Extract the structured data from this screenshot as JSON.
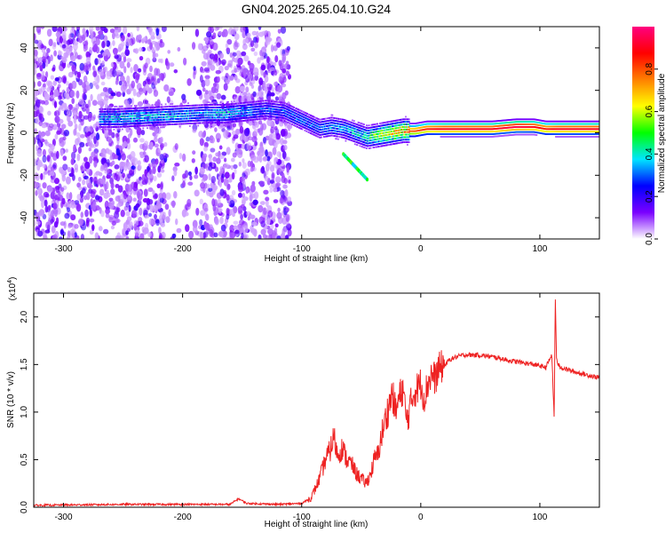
{
  "title": "GN04.2025.265.04.10.G24",
  "chart_data": [
    {
      "type": "heatmap",
      "title": "GN04.2025.265.04.10.G24",
      "xlabel": "Height of straight line (km)",
      "ylabel": "Frequency (Hz)",
      "xlim": [
        -325,
        150
      ],
      "ylim": [
        -50,
        50
      ],
      "xticks": [
        -300,
        -200,
        -100,
        0,
        100
      ],
      "xtick_labels": [
        "-300",
        "-200",
        "-100",
        "0",
        "100"
      ],
      "yticks": [
        -40,
        -20,
        0,
        20,
        40
      ],
      "ytick_labels": [
        "-40",
        "-20",
        "0",
        "20",
        "40"
      ],
      "colorbar": {
        "label": "Normalized spectral amplitude",
        "range": [
          0,
          1
        ],
        "ticks": [
          0,
          0.2,
          0.4,
          0.6,
          0.8
        ],
        "tick_labels": [
          "0.0",
          "0.2",
          "0.4",
          "0.6",
          "0.8"
        ],
        "colormap": [
          "#ffffff",
          "#7a00ff",
          "#0000ff",
          "#00e5ff",
          "#00ff00",
          "#ffff00",
          "#ff8000",
          "#ff0000",
          "#ff0080"
        ]
      },
      "ridge": {
        "description_free_values": true,
        "x": [
          -270,
          -255,
          -180,
          -165,
          -130,
          -115,
          -100,
          -85,
          -75,
          -65,
          -55,
          -45,
          -35,
          -25,
          -15,
          -5,
          5,
          20,
          40,
          60,
          80,
          95,
          105,
          115,
          130,
          150
        ],
        "frequency": [
          7,
          7,
          9,
          9,
          11,
          10,
          6,
          2,
          3,
          2,
          0,
          -2,
          -1,
          0,
          1,
          1,
          2,
          2,
          2,
          2,
          3,
          3,
          2,
          2,
          2,
          2
        ],
        "amplitude": [
          0.35,
          0.4,
          0.35,
          0.4,
          0.3,
          0.3,
          0.3,
          0.3,
          0.35,
          0.35,
          0.4,
          0.45,
          0.6,
          0.7,
          0.75,
          0.8,
          0.85,
          0.9,
          0.9,
          0.9,
          0.95,
          0.9,
          0.85,
          0.9,
          0.9,
          0.9
        ]
      }
    },
    {
      "type": "line",
      "xlabel": "Height of straight line (km)",
      "ylabel": "SNR (10 * v/v)",
      "multiplier_label": "(x10",
      "multiplier_exp": "4",
      "multiplier_close": ")",
      "xlim": [
        -325,
        150
      ],
      "ylim": [
        0,
        2.25
      ],
      "xticks": [
        -300,
        -200,
        -100,
        0,
        100
      ],
      "xtick_labels": [
        "-300",
        "-200",
        "-100",
        "0",
        "100"
      ],
      "yticks": [
        0,
        0.5,
        1.0,
        1.5,
        2.0
      ],
      "ytick_labels": [
        "0.0",
        "0.5",
        "1.0",
        "1.5",
        "2.0"
      ],
      "color": "#ee2222",
      "series": [
        {
          "name": "SNR",
          "x": [
            -325,
            -250,
            -160,
            -153,
            -146,
            -120,
            -100,
            -92,
            -85,
            -80,
            -76,
            -73,
            -70,
            -66,
            -62,
            -58,
            -54,
            -50,
            -46,
            -42,
            -39,
            -36,
            -33,
            -30,
            -27,
            -24,
            -21,
            -18,
            -15,
            -12,
            -9,
            -6,
            -3,
            0,
            3,
            6,
            9,
            12,
            15,
            18,
            21,
            24,
            30,
            36,
            42,
            48,
            55,
            65,
            75,
            85,
            95,
            105,
            110,
            112,
            113,
            114,
            116,
            120,
            130,
            140,
            150
          ],
          "y": [
            0.02,
            0.03,
            0.03,
            0.09,
            0.04,
            0.03,
            0.04,
            0.1,
            0.3,
            0.5,
            0.6,
            0.75,
            0.55,
            0.62,
            0.5,
            0.45,
            0.35,
            0.3,
            0.25,
            0.35,
            0.5,
            0.55,
            0.75,
            0.9,
            1.05,
            1.2,
            1.0,
            1.15,
            1.25,
            0.9,
            1.05,
            1.2,
            1.25,
            1.3,
            1.15,
            1.3,
            1.4,
            1.35,
            1.45,
            1.48,
            1.5,
            1.55,
            1.58,
            1.6,
            1.6,
            1.6,
            1.59,
            1.57,
            1.54,
            1.52,
            1.5,
            1.47,
            1.6,
            0.95,
            2.2,
            1.55,
            1.48,
            1.46,
            1.42,
            1.39,
            1.36
          ]
        }
      ]
    }
  ]
}
